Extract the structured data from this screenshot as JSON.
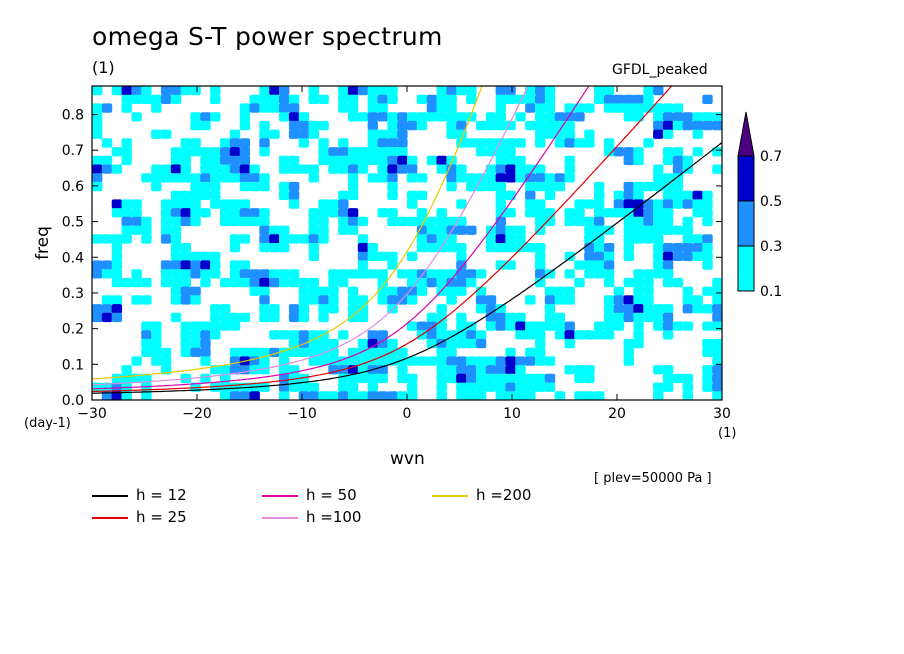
{
  "header": {
    "title": "omega S-T power spectrum",
    "subtitle": "(1)",
    "model": "GFDL_peaked"
  },
  "footer": {
    "plev": "[ plev=50000 Pa ]"
  },
  "chart_data": {
    "type": "heatmap",
    "xlabel": "wvn",
    "xunit": "(1)",
    "ylabel": "freq",
    "yunit": "(day-1)",
    "xlim": [
      -30,
      30
    ],
    "ylim": [
      0,
      0.88
    ],
    "xticks": [
      -30,
      -20,
      -10,
      0,
      10,
      20,
      30
    ],
    "yticks": [
      0.0,
      0.1,
      0.2,
      0.3,
      0.4,
      0.5,
      0.6,
      0.7,
      0.8
    ],
    "colorbar": {
      "levels": [
        "0.1",
        "0.3",
        "0.5",
        "0.7"
      ],
      "colors": [
        "#00ffff",
        "#1e90ff",
        "#0000cd",
        "#4b0082"
      ]
    },
    "series": [
      {
        "name": "h = 12",
        "h": 12,
        "color": "#000000"
      },
      {
        "name": "h = 25",
        "h": 25,
        "color": "#e00000"
      },
      {
        "name": "h = 50",
        "h": 50,
        "color": "#dd00aa"
      },
      {
        "name": "h =100",
        "h": 100,
        "color": "#e08be0"
      },
      {
        "name": "h =200",
        "h": 200,
        "color": "#e8c800"
      }
    ]
  }
}
